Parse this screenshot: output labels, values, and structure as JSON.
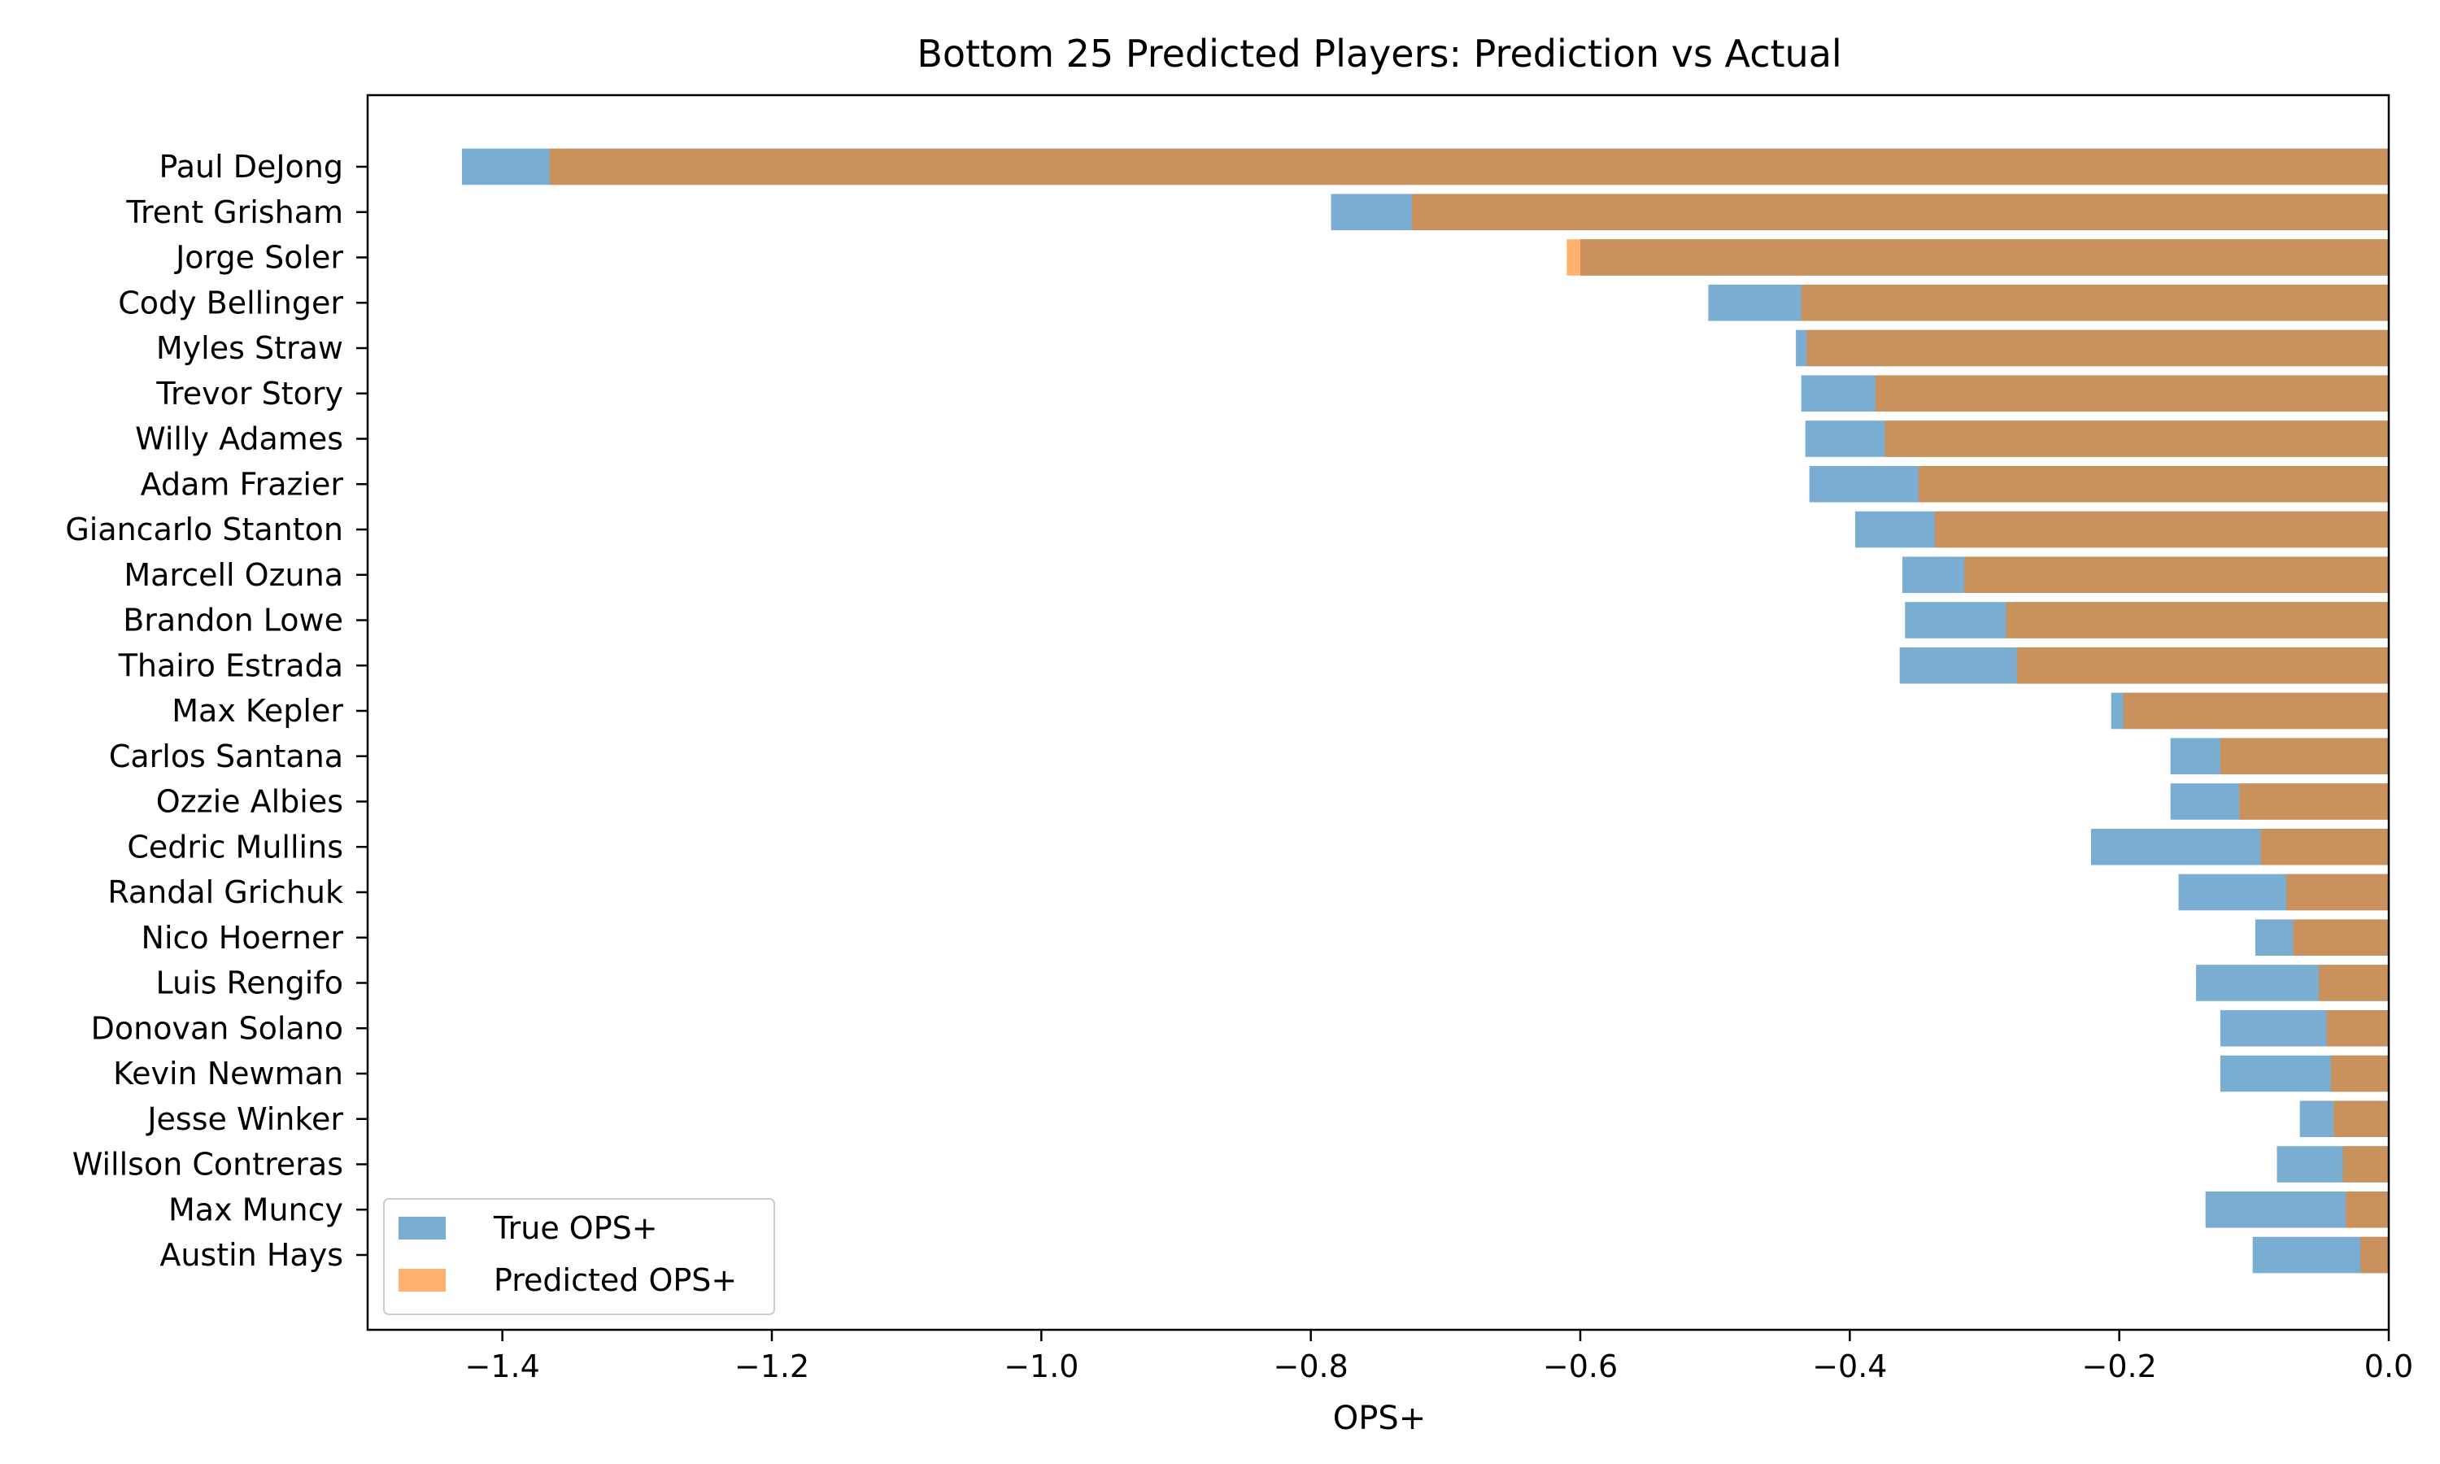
{
  "chart_data": {
    "type": "bar",
    "orientation": "horizontal",
    "title": "Bottom 25 Predicted Players: Prediction vs Actual",
    "xlabel": "OPS+",
    "ylabel": "",
    "xlim": [
      -1.5,
      0.0
    ],
    "xticks": [
      -1.4,
      -1.2,
      -1.0,
      -0.8,
      -0.6,
      -0.4,
      -0.2,
      0.0
    ],
    "xtick_labels": [
      "−1.4",
      "−1.2",
      "−1.0",
      "−0.8",
      "−0.6",
      "−0.4",
      "−0.2",
      "0.0"
    ],
    "grid": false,
    "legend_position": "lower-left",
    "categories": [
      "Paul DeJong",
      "Trent Grisham",
      "Jorge Soler",
      "Cody Bellinger",
      "Myles Straw",
      "Trevor Story",
      "Willy Adames",
      "Adam Frazier",
      "Giancarlo Stanton",
      "Marcell Ozuna",
      "Brandon Lowe",
      "Thairo Estrada",
      "Max Kepler",
      "Carlos Santana",
      "Ozzie Albies",
      "Cedric Mullins",
      "Randal Grichuk",
      "Nico Hoerner",
      "Luis Rengifo",
      "Donovan Solano",
      "Kevin Newman",
      "Jesse Winker",
      "Willson Contreras",
      "Max Muncy",
      "Austin Hays"
    ],
    "series": [
      {
        "name": "True OPS+",
        "color": "#1f77b4",
        "opacity": 0.6,
        "values": [
          -1.43,
          -0.785,
          -0.6,
          -0.505,
          -0.44,
          -0.436,
          -0.433,
          -0.43,
          -0.396,
          -0.361,
          -0.359,
          -0.363,
          -0.206,
          -0.162,
          -0.162,
          -0.221,
          -0.156,
          -0.099,
          -0.143,
          -0.125,
          -0.125,
          -0.066,
          -0.083,
          -0.136,
          -0.101
        ]
      },
      {
        "name": "Predicted OPS+",
        "color": "#ff7f0e",
        "opacity": 0.6,
        "values": [
          -1.365,
          -0.725,
          -0.61,
          -0.436,
          -0.432,
          -0.381,
          -0.374,
          -0.349,
          -0.337,
          -0.315,
          -0.284,
          -0.276,
          -0.197,
          -0.125,
          -0.111,
          -0.095,
          -0.076,
          -0.071,
          -0.052,
          -0.046,
          -0.043,
          -0.041,
          -0.034,
          -0.032,
          -0.021
        ]
      }
    ]
  }
}
